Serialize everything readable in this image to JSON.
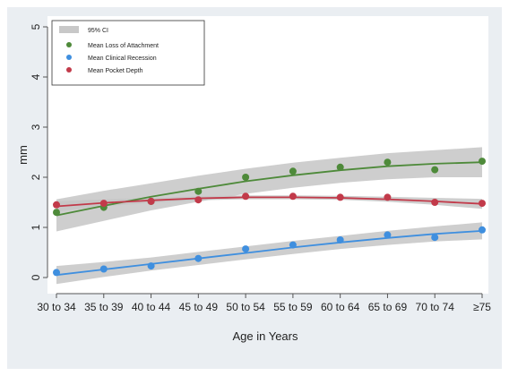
{
  "chart_data": {
    "type": "line",
    "title": "",
    "xlabel": "Age in Years",
    "ylabel": "mm",
    "categories": [
      "30 to 34",
      "35 to 39",
      "40 to 44",
      "45 to 49",
      "50 to 54",
      "55 to 59",
      "60 to 64",
      "65 to 69",
      "70 to 74",
      "≥75"
    ],
    "ylim": [
      0,
      5
    ],
    "yticks": [
      "0",
      "1",
      "2",
      "3",
      "4",
      "5"
    ],
    "grid": false,
    "legend_position": "top-left",
    "legend_ci_label": "95% CI",
    "series": [
      {
        "name": "Mean Loss of Attachment",
        "color": "#4e8a3a",
        "points": [
          1.3,
          1.4,
          1.52,
          1.72,
          2.0,
          2.12,
          2.2,
          2.3,
          2.15,
          2.32
        ],
        "fit": [
          1.24,
          1.43,
          1.61,
          1.77,
          1.92,
          2.04,
          2.14,
          2.22,
          2.27,
          2.3
        ],
        "ci": [
          0.32,
          0.3,
          0.27,
          0.26,
          0.25,
          0.25,
          0.25,
          0.26,
          0.27,
          0.3
        ]
      },
      {
        "name": "Mean Clinical Recession",
        "color": "#3f8fdf",
        "points": [
          0.1,
          0.17,
          0.23,
          0.38,
          0.57,
          0.65,
          0.75,
          0.85,
          0.8,
          0.95
        ],
        "fit": [
          0.05,
          0.16,
          0.27,
          0.38,
          0.49,
          0.6,
          0.7,
          0.79,
          0.87,
          0.93
        ],
        "ci": [
          0.18,
          0.15,
          0.13,
          0.13,
          0.13,
          0.13,
          0.13,
          0.14,
          0.15,
          0.17
        ]
      },
      {
        "name": "Mean Pocket Depth",
        "color": "#c23a4a",
        "points": [
          1.45,
          1.48,
          1.52,
          1.55,
          1.62,
          1.62,
          1.6,
          1.6,
          1.5,
          1.48
        ],
        "fit": [
          1.42,
          1.49,
          1.54,
          1.58,
          1.6,
          1.6,
          1.59,
          1.56,
          1.52,
          1.47
        ],
        "ci": [
          0.1,
          0.07,
          0.05,
          0.04,
          0.04,
          0.04,
          0.04,
          0.05,
          0.07,
          0.1
        ]
      }
    ]
  }
}
